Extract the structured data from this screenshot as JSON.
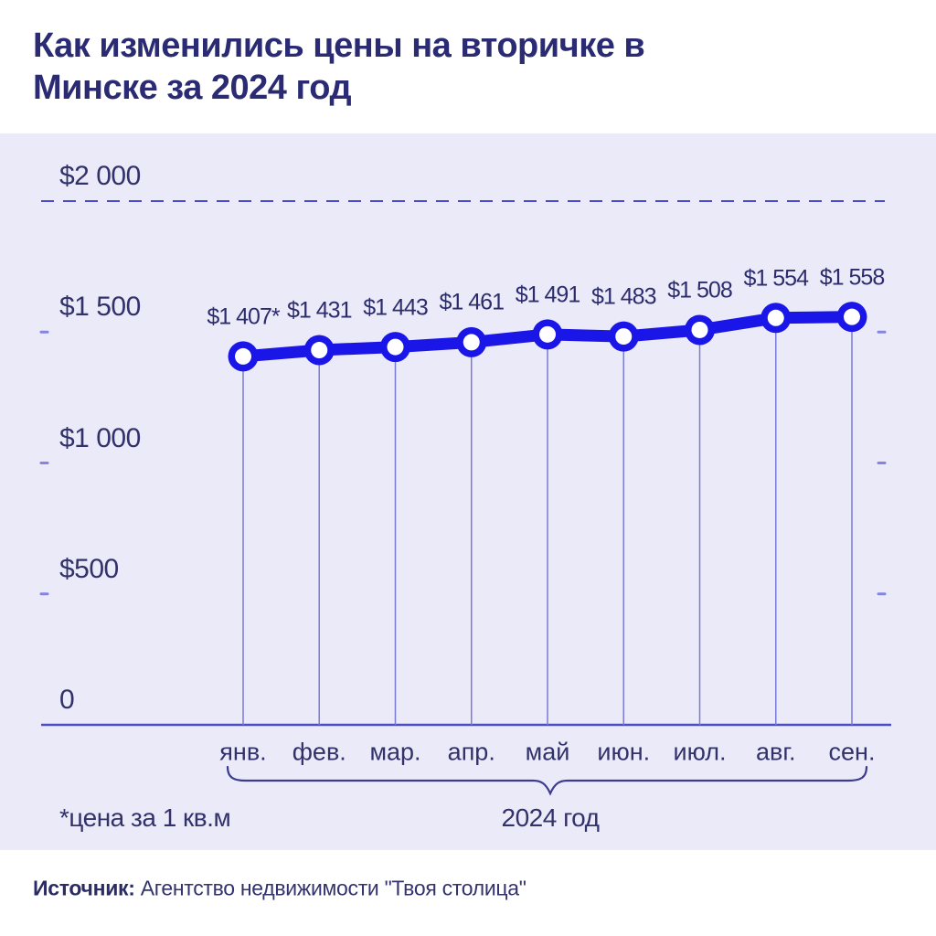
{
  "page": {
    "title_lines": {
      "0": "Как изменились цены на вторичке в",
      "1": "Минске за 2024 год"
    },
    "footnote": "*цена за 1 кв.м",
    "x_group_label": "2024 год",
    "source_label": "Источник:",
    "source_text": " Агентство недвижимости \"Твоя столица\""
  },
  "colors": {
    "page_background": "#ffffff",
    "chart_background": "#eaeaf9",
    "title_text": "#2b2b74",
    "axis_text": "#32326b",
    "point_label_text": "#2c2c6d",
    "line": "#1b16e8",
    "marker_ring": "#1b16e8",
    "marker_fill": "#ffffff",
    "grid_dashed": "#4a4acc",
    "edge_tick": "#8585df",
    "baseline": "#4c4cc4",
    "dropline": "#7a7ad8",
    "brace": "#3c3c8e"
  },
  "chart_data": {
    "type": "line",
    "title": "Как изменились цены на вторичке в Минске за 2024 год",
    "xlabel": "2024 год",
    "ylabel": "",
    "ylim": [
      0,
      2000
    ],
    "grid": "horizontal, dashed top line at 2000, edge ticks at 1500/1000/500, solid baseline at 0",
    "legend": "none",
    "categories": [
      "янв.",
      "фев.",
      "мар.",
      "апр.",
      "май",
      "июн.",
      "июл.",
      "авг.",
      "сен."
    ],
    "values": [
      1407,
      1431,
      1443,
      1461,
      1491,
      1483,
      1508,
      1554,
      1558
    ],
    "point_labels": [
      "$1 407*",
      "$1 431",
      "$1 443",
      "$1 461",
      "$1 491",
      "$1 483",
      "$1 508",
      "$1 554",
      "$1 558"
    ],
    "y_ticks": [
      {
        "label": "$2 000",
        "value": 2000,
        "style": "dashed-line"
      },
      {
        "label": "$1 500",
        "value": 1500,
        "style": "edge-ticks"
      },
      {
        "label": "$1 000",
        "value": 1000,
        "style": "edge-ticks"
      },
      {
        "label": "$500",
        "value": 500,
        "style": "edge-ticks"
      },
      {
        "label": "0",
        "value": 0,
        "style": "baseline"
      }
    ]
  }
}
